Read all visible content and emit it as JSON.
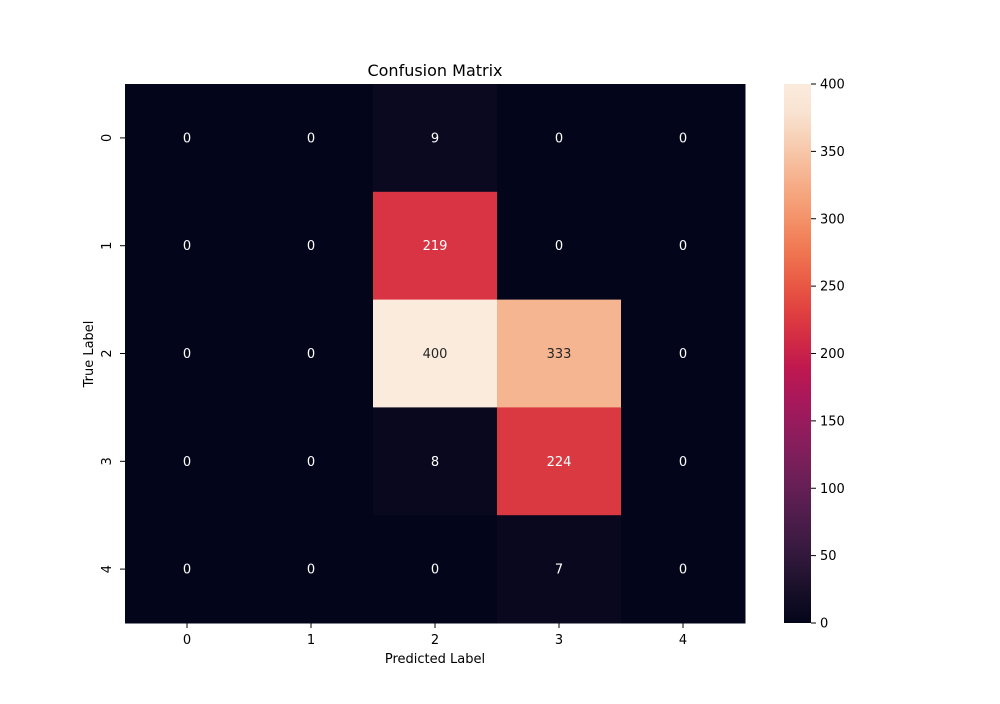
{
  "chart_data": {
    "type": "heatmap",
    "title": "Confusion Matrix",
    "xlabel": "Predicted Label",
    "ylabel": "True Label",
    "x_categories": [
      "0",
      "1",
      "2",
      "3",
      "4"
    ],
    "y_categories": [
      "0",
      "1",
      "2",
      "3",
      "4"
    ],
    "values": [
      [
        0,
        0,
        9,
        0,
        0
      ],
      [
        0,
        0,
        219,
        0,
        0
      ],
      [
        0,
        0,
        400,
        333,
        0
      ],
      [
        0,
        0,
        8,
        224,
        0
      ],
      [
        0,
        0,
        0,
        7,
        0
      ]
    ],
    "value_range": [
      0,
      400
    ],
    "colorbar_ticks": [
      0,
      50,
      100,
      150,
      200,
      250,
      300,
      350,
      400
    ],
    "colormap": "rocket",
    "colormap_stops": [
      "#03051a",
      "#150e26",
      "#2a1636",
      "#3f1b44",
      "#541e4e",
      "#6a1f56",
      "#801f5b",
      "#961b5d",
      "#ab185a",
      "#c0184f",
      "#d22b45",
      "#e0413f",
      "#e95a45",
      "#ef7450",
      "#f38c63",
      "#f5a37b",
      "#f6b996",
      "#f7cfb4",
      "#f9e3d2",
      "#faebdd"
    ],
    "annotation_colors": {
      "dark_text": "#262626",
      "light_text": "#ffffff"
    },
    "grid": false,
    "colorbar_position": "right"
  }
}
